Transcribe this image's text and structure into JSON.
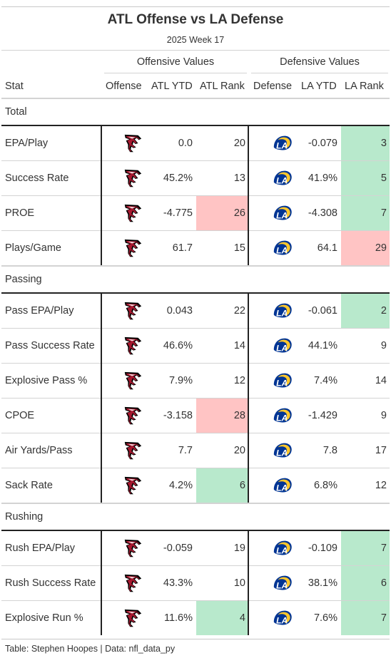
{
  "title": "ATL Offense vs LA Defense",
  "subtitle": "2025 Week 17",
  "spanners": {
    "offense": "Offensive Values",
    "defense": "Defensive Values"
  },
  "columns": {
    "stat": "Stat",
    "offense": "Offense",
    "atl_ytd": "ATL YTD",
    "atl_rank": "ATL Rank",
    "defense": "Defense",
    "la_ytd": "LA YTD",
    "la_rank": "LA Rank"
  },
  "colors": {
    "good": "#b8e9cc",
    "bad": "#ffc4c4",
    "falcons_red": "#a71930",
    "rams_blue": "#003594",
    "rams_gold": "#ffc72c"
  },
  "icons": {
    "offense_logo": "falcons-logo",
    "defense_logo": "rams-logo"
  },
  "groups": [
    {
      "label": "Total",
      "rows": [
        {
          "stat": "EPA/Play",
          "atl_ytd": "0.0",
          "atl_rank": "20",
          "atl_rank_hl": "",
          "la_ytd": "-0.079",
          "la_rank": "3",
          "la_rank_hl": "good"
        },
        {
          "stat": "Success Rate",
          "atl_ytd": "45.2%",
          "atl_rank": "13",
          "atl_rank_hl": "",
          "la_ytd": "41.9%",
          "la_rank": "5",
          "la_rank_hl": "good"
        },
        {
          "stat": "PROE",
          "atl_ytd": "-4.775",
          "atl_rank": "26",
          "atl_rank_hl": "bad",
          "la_ytd": "-4.308",
          "la_rank": "7",
          "la_rank_hl": "good"
        },
        {
          "stat": "Plays/Game",
          "atl_ytd": "61.7",
          "atl_rank": "15",
          "atl_rank_hl": "",
          "la_ytd": "64.1",
          "la_rank": "29",
          "la_rank_hl": "bad"
        }
      ]
    },
    {
      "label": "Passing",
      "rows": [
        {
          "stat": "Pass EPA/Play",
          "atl_ytd": "0.043",
          "atl_rank": "22",
          "atl_rank_hl": "",
          "la_ytd": "-0.061",
          "la_rank": "2",
          "la_rank_hl": "good"
        },
        {
          "stat": "Pass Success Rate",
          "atl_ytd": "46.6%",
          "atl_rank": "14",
          "atl_rank_hl": "",
          "la_ytd": "44.1%",
          "la_rank": "9",
          "la_rank_hl": ""
        },
        {
          "stat": "Explosive Pass %",
          "atl_ytd": "7.9%",
          "atl_rank": "12",
          "atl_rank_hl": "",
          "la_ytd": "7.4%",
          "la_rank": "14",
          "la_rank_hl": ""
        },
        {
          "stat": "CPOE",
          "atl_ytd": "-3.158",
          "atl_rank": "28",
          "atl_rank_hl": "bad",
          "la_ytd": "-1.429",
          "la_rank": "9",
          "la_rank_hl": ""
        },
        {
          "stat": "Air Yards/Pass",
          "atl_ytd": "7.7",
          "atl_rank": "20",
          "atl_rank_hl": "",
          "la_ytd": "7.8",
          "la_rank": "17",
          "la_rank_hl": ""
        },
        {
          "stat": "Sack Rate",
          "atl_ytd": "4.2%",
          "atl_rank": "6",
          "atl_rank_hl": "good",
          "la_ytd": "6.8%",
          "la_rank": "12",
          "la_rank_hl": ""
        }
      ]
    },
    {
      "label": "Rushing",
      "rows": [
        {
          "stat": "Rush EPA/Play",
          "atl_ytd": "-0.059",
          "atl_rank": "19",
          "atl_rank_hl": "",
          "la_ytd": "-0.109",
          "la_rank": "7",
          "la_rank_hl": "good"
        },
        {
          "stat": "Rush Success Rate",
          "atl_ytd": "43.3%",
          "atl_rank": "10",
          "atl_rank_hl": "",
          "la_ytd": "38.1%",
          "la_rank": "6",
          "la_rank_hl": "good"
        },
        {
          "stat": "Explosive Run %",
          "atl_ytd": "11.6%",
          "atl_rank": "4",
          "atl_rank_hl": "good",
          "la_ytd": "7.6%",
          "la_rank": "7",
          "la_rank_hl": "good"
        }
      ]
    }
  ],
  "footer": "Table: Stephen Hoopes | Data: nfl_data_py"
}
